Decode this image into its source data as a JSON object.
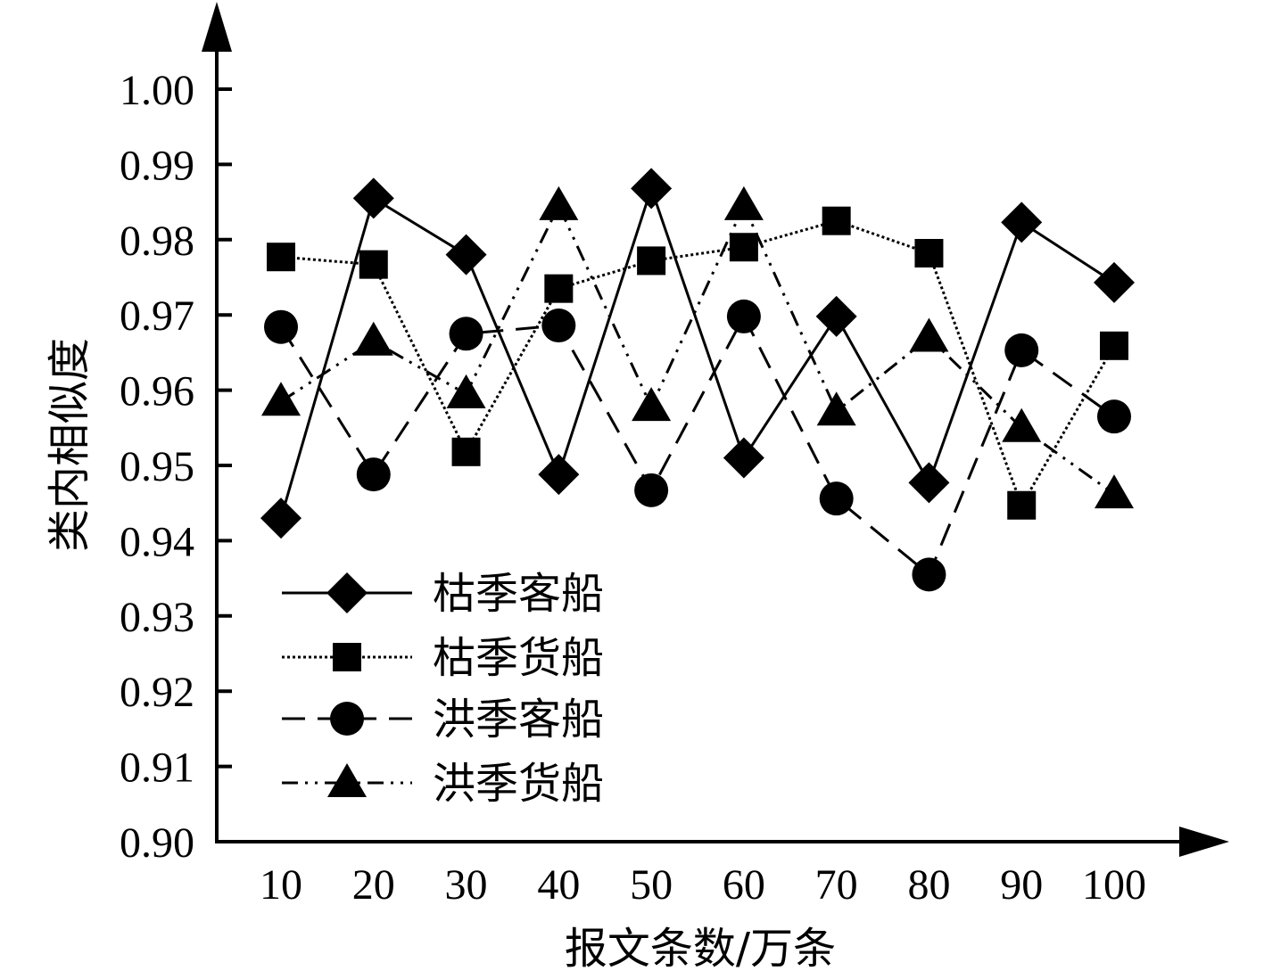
{
  "chart_data": {
    "type": "line",
    "xlabel": "报文条数/万条",
    "ylabel": "类内相似度",
    "x": [
      10,
      20,
      30,
      40,
      50,
      60,
      70,
      80,
      90,
      100
    ],
    "x_tick_labels": [
      "10",
      "20",
      "30",
      "40",
      "50",
      "60",
      "70",
      "80",
      "90",
      "100"
    ],
    "ylim": [
      0.9,
      1.0
    ],
    "y_ticks": [
      0.9,
      0.91,
      0.92,
      0.93,
      0.94,
      0.95,
      0.96,
      0.97,
      0.98,
      0.99,
      1.0
    ],
    "y_tick_labels": [
      "0.90",
      "0.91",
      "0.92",
      "0.93",
      "0.94",
      "0.95",
      "0.96",
      "0.97",
      "0.98",
      "0.99",
      "1.00"
    ],
    "grid": false,
    "legend_position": "bottom-left",
    "series": [
      {
        "name": "枯季客船",
        "marker": "diamond",
        "line_style": "solid",
        "color": "#000000",
        "values": [
          0.943,
          0.9855,
          0.978,
          0.9488,
          0.9868,
          0.951,
          0.9698,
          0.9477,
          0.9823,
          0.9743
        ]
      },
      {
        "name": "枯季货船",
        "marker": "square",
        "line_style": "dotted",
        "color": "#000000",
        "values": [
          0.9777,
          0.9767,
          0.9518,
          0.9735,
          0.9772,
          0.979,
          0.9825,
          0.9782,
          0.9447,
          0.9659
        ]
      },
      {
        "name": "洪季客船",
        "marker": "circle",
        "line_style": "dashed",
        "color": "#000000",
        "values": [
          0.9684,
          0.9488,
          0.9675,
          0.9686,
          0.9467,
          0.9698,
          0.9456,
          0.9355,
          0.9653,
          0.9565
        ]
      },
      {
        "name": "洪季货船",
        "marker": "triangle",
        "line_style": "dash-dot-dot",
        "color": "#000000",
        "values": [
          0.9585,
          0.9665,
          0.9595,
          0.9845,
          0.9578,
          0.9845,
          0.9572,
          0.967,
          0.955,
          0.9462
        ]
      }
    ]
  }
}
